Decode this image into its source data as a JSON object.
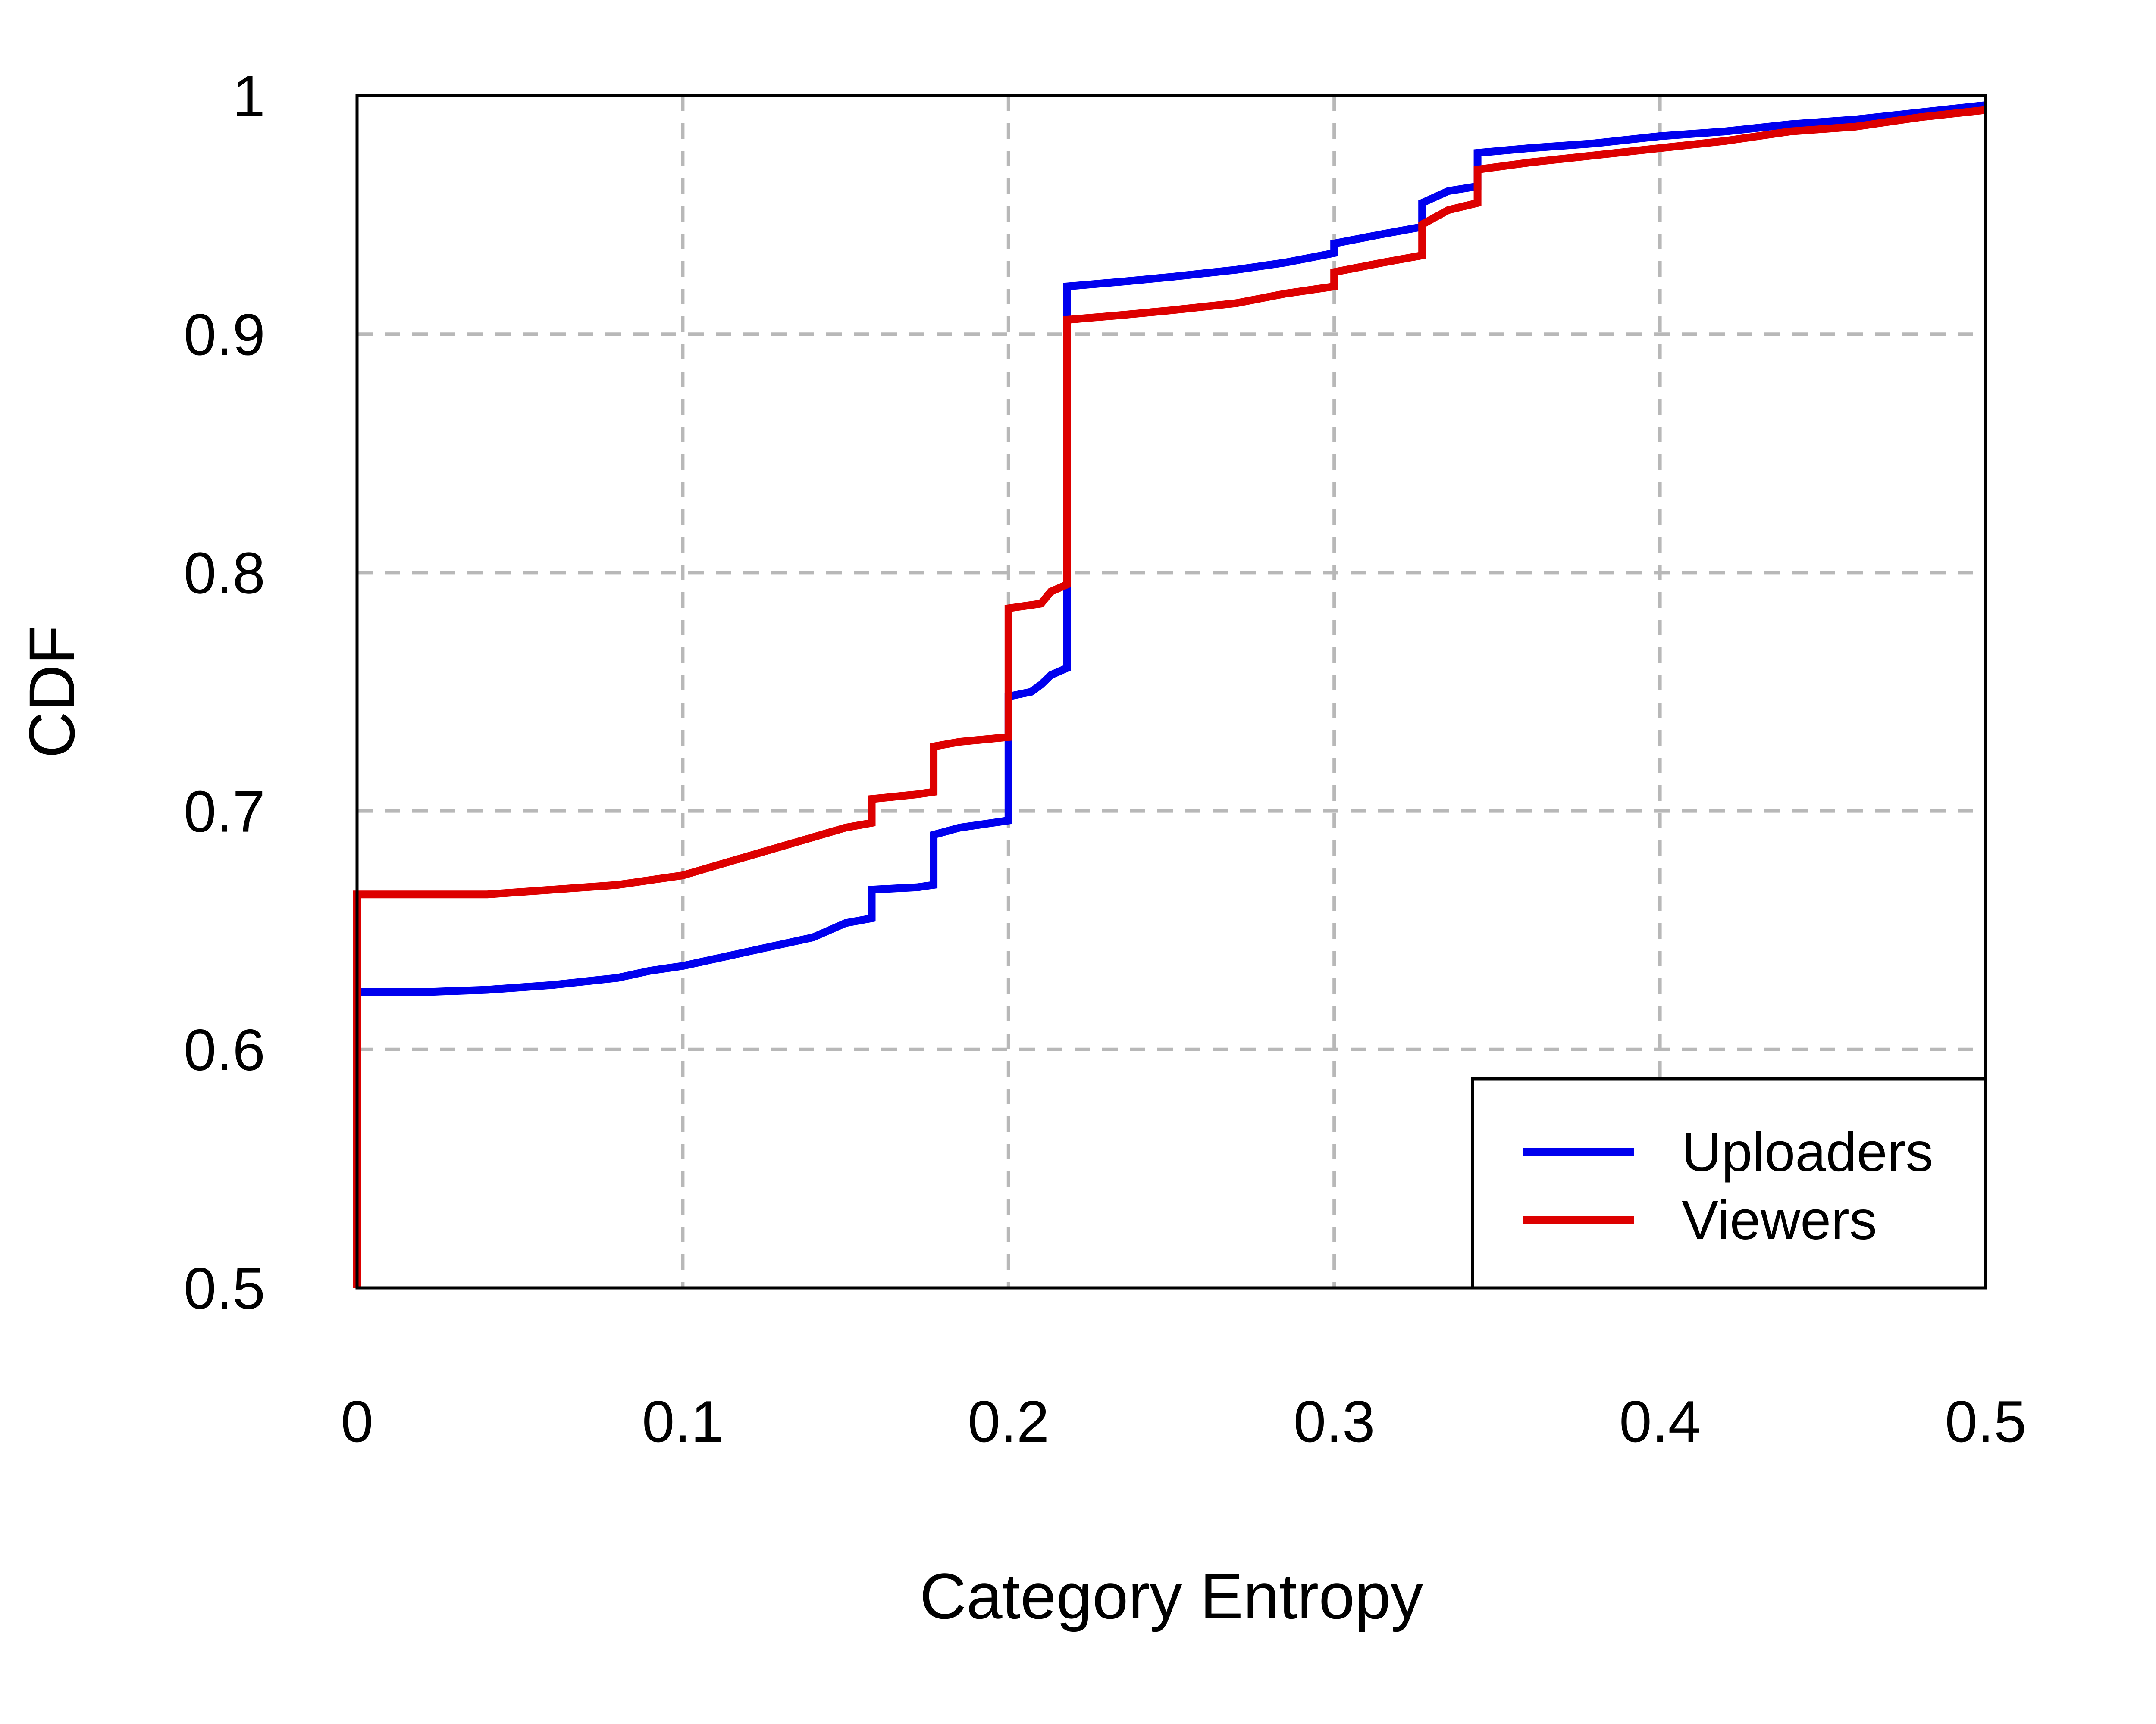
{
  "chart_data": {
    "type": "line",
    "xlabel": "Category Entropy",
    "ylabel": "CDF",
    "xlim": [
      0,
      0.5
    ],
    "ylim": [
      0.5,
      1
    ],
    "xticks": [
      0,
      0.1,
      0.2,
      0.3,
      0.4,
      0.5
    ],
    "yticks": [
      0.5,
      0.6,
      0.7,
      0.8,
      0.9,
      1
    ],
    "xtick_labels": [
      "0",
      "0.1",
      "0.2",
      "0.3",
      "0.4",
      "0.5"
    ],
    "ytick_labels": [
      "0.5",
      "0.6",
      "0.7",
      "0.8",
      "0.9",
      "1"
    ],
    "grid": true,
    "legend_position": "bottom-right",
    "series": [
      {
        "name": "Uploaders",
        "color": "#0000ee",
        "points": [
          [
            0,
            0.5
          ],
          [
            0,
            0.624
          ],
          [
            0.02,
            0.624
          ],
          [
            0.04,
            0.625
          ],
          [
            0.06,
            0.627
          ],
          [
            0.08,
            0.63
          ],
          [
            0.09,
            0.633
          ],
          [
            0.1,
            0.635
          ],
          [
            0.11,
            0.638
          ],
          [
            0.12,
            0.641
          ],
          [
            0.13,
            0.644
          ],
          [
            0.14,
            0.647
          ],
          [
            0.15,
            0.653
          ],
          [
            0.158,
            0.655
          ],
          [
            0.158,
            0.667
          ],
          [
            0.172,
            0.668
          ],
          [
            0.177,
            0.669
          ],
          [
            0.177,
            0.69
          ],
          [
            0.185,
            0.693
          ],
          [
            0.2,
            0.696
          ],
          [
            0.2,
            0.748
          ],
          [
            0.207,
            0.75
          ],
          [
            0.21,
            0.753
          ],
          [
            0.213,
            0.757
          ],
          [
            0.218,
            0.76
          ],
          [
            0.218,
            0.92
          ],
          [
            0.235,
            0.922
          ],
          [
            0.25,
            0.924
          ],
          [
            0.27,
            0.927
          ],
          [
            0.285,
            0.93
          ],
          [
            0.3,
            0.934
          ],
          [
            0.3,
            0.938
          ],
          [
            0.315,
            0.942
          ],
          [
            0.327,
            0.945
          ],
          [
            0.327,
            0.955
          ],
          [
            0.335,
            0.96
          ],
          [
            0.344,
            0.962
          ],
          [
            0.344,
            0.976
          ],
          [
            0.36,
            0.978
          ],
          [
            0.38,
            0.98
          ],
          [
            0.4,
            0.983
          ],
          [
            0.42,
            0.985
          ],
          [
            0.44,
            0.988
          ],
          [
            0.46,
            0.99
          ],
          [
            0.48,
            0.993
          ],
          [
            0.5,
            0.996
          ]
        ]
      },
      {
        "name": "Viewers",
        "color": "#dd0000",
        "points": [
          [
            0,
            0.5
          ],
          [
            0,
            0.665
          ],
          [
            0.02,
            0.665
          ],
          [
            0.04,
            0.665
          ],
          [
            0.06,
            0.667
          ],
          [
            0.08,
            0.669
          ],
          [
            0.09,
            0.671
          ],
          [
            0.1,
            0.673
          ],
          [
            0.11,
            0.677
          ],
          [
            0.12,
            0.681
          ],
          [
            0.13,
            0.685
          ],
          [
            0.14,
            0.689
          ],
          [
            0.15,
            0.693
          ],
          [
            0.158,
            0.695
          ],
          [
            0.158,
            0.705
          ],
          [
            0.172,
            0.707
          ],
          [
            0.177,
            0.708
          ],
          [
            0.177,
            0.727
          ],
          [
            0.185,
            0.729
          ],
          [
            0.2,
            0.731
          ],
          [
            0.2,
            0.785
          ],
          [
            0.21,
            0.787
          ],
          [
            0.213,
            0.792
          ],
          [
            0.218,
            0.795
          ],
          [
            0.218,
            0.906
          ],
          [
            0.235,
            0.908
          ],
          [
            0.25,
            0.91
          ],
          [
            0.27,
            0.913
          ],
          [
            0.285,
            0.917
          ],
          [
            0.3,
            0.92
          ],
          [
            0.3,
            0.926
          ],
          [
            0.315,
            0.93
          ],
          [
            0.327,
            0.933
          ],
          [
            0.327,
            0.946
          ],
          [
            0.335,
            0.952
          ],
          [
            0.344,
            0.955
          ],
          [
            0.344,
            0.969
          ],
          [
            0.36,
            0.972
          ],
          [
            0.38,
            0.975
          ],
          [
            0.4,
            0.978
          ],
          [
            0.42,
            0.981
          ],
          [
            0.44,
            0.985
          ],
          [
            0.46,
            0.987
          ],
          [
            0.48,
            0.991
          ],
          [
            0.5,
            0.994
          ]
        ]
      }
    ]
  }
}
